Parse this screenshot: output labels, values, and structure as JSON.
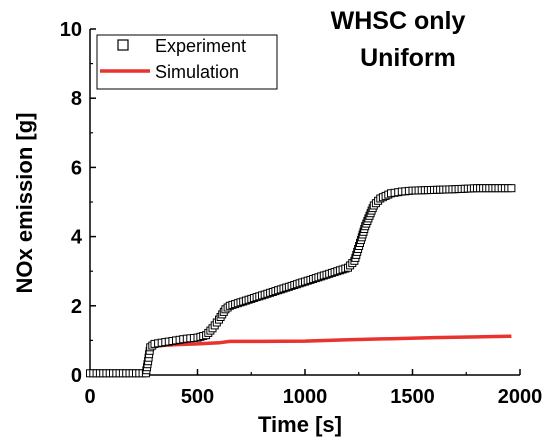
{
  "chart_data": {
    "type": "line",
    "title_lines": [
      "WHSC only",
      "Uniform"
    ],
    "xlabel": "Time [s]",
    "ylabel": "NOx emission [g]",
    "xlim": [
      0,
      2000
    ],
    "ylim": [
      0,
      10
    ],
    "x_ticks": [
      0,
      500,
      1000,
      1500,
      2000
    ],
    "y_ticks": [
      0,
      2,
      4,
      6,
      8,
      10
    ],
    "grid": false,
    "legend_position": "top-left",
    "series": [
      {
        "name": "Experiment",
        "style": "open-square-markers",
        "color": "#000000",
        "points": [
          [
            0,
            0.05
          ],
          [
            260,
            0.05
          ],
          [
            270,
            0.4
          ],
          [
            280,
            0.8
          ],
          [
            300,
            0.9
          ],
          [
            350,
            0.95
          ],
          [
            400,
            1.0
          ],
          [
            450,
            1.05
          ],
          [
            500,
            1.08
          ],
          [
            540,
            1.15
          ],
          [
            570,
            1.35
          ],
          [
            600,
            1.6
          ],
          [
            630,
            1.9
          ],
          [
            650,
            2.0
          ],
          [
            700,
            2.1
          ],
          [
            750,
            2.2
          ],
          [
            800,
            2.3
          ],
          [
            850,
            2.4
          ],
          [
            900,
            2.5
          ],
          [
            950,
            2.6
          ],
          [
            1000,
            2.7
          ],
          [
            1050,
            2.8
          ],
          [
            1100,
            2.9
          ],
          [
            1150,
            3.0
          ],
          [
            1200,
            3.1
          ],
          [
            1230,
            3.3
          ],
          [
            1260,
            3.9
          ],
          [
            1280,
            4.3
          ],
          [
            1300,
            4.6
          ],
          [
            1320,
            4.9
          ],
          [
            1350,
            5.1
          ],
          [
            1400,
            5.25
          ],
          [
            1450,
            5.3
          ],
          [
            1500,
            5.33
          ],
          [
            1600,
            5.35
          ],
          [
            1700,
            5.37
          ],
          [
            1800,
            5.4
          ],
          [
            1900,
            5.4
          ],
          [
            1960,
            5.4
          ]
        ]
      },
      {
        "name": "Simulation",
        "style": "line",
        "color": "#e8332f",
        "points": [
          [
            0,
            0.05
          ],
          [
            260,
            0.05
          ],
          [
            270,
            0.5
          ],
          [
            290,
            0.8
          ],
          [
            320,
            0.85
          ],
          [
            400,
            0.88
          ],
          [
            500,
            0.9
          ],
          [
            600,
            0.93
          ],
          [
            650,
            0.97
          ],
          [
            800,
            0.97
          ],
          [
            1000,
            0.98
          ],
          [
            1200,
            1.02
          ],
          [
            1400,
            1.05
          ],
          [
            1600,
            1.08
          ],
          [
            1800,
            1.1
          ],
          [
            1960,
            1.12
          ]
        ]
      }
    ]
  }
}
